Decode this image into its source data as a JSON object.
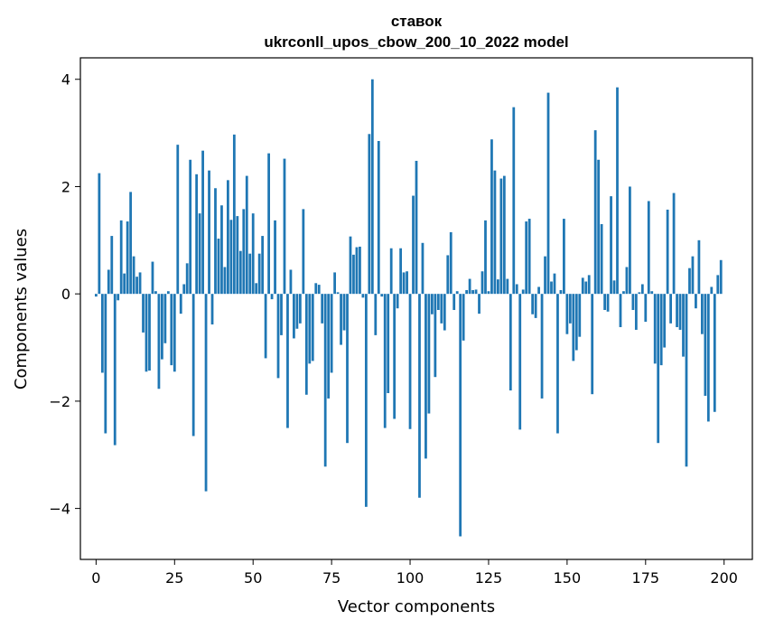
{
  "chart_data": {
    "type": "bar",
    "title_lines": [
      "ставок",
      "ukrconll_upos_cbow_200_10_2022 model"
    ],
    "xlabel": "Vector components",
    "ylabel": "Components values",
    "xlim": [
      -5,
      209
    ],
    "ylim": [
      -4.95,
      4.4
    ],
    "x_ticks": [
      0,
      25,
      50,
      75,
      100,
      125,
      150,
      175,
      200
    ],
    "y_ticks": [
      -4,
      -2,
      0,
      2,
      4
    ],
    "y_tick_labels": [
      "−4",
      "−2",
      "0",
      "2",
      "4"
    ],
    "grid": false,
    "bar_color": "#1f77b4",
    "values": [
      -0.05,
      2.25,
      -1.47,
      -2.6,
      0.45,
      1.08,
      -2.82,
      -0.12,
      1.37,
      0.38,
      1.35,
      1.9,
      0.7,
      0.32,
      0.4,
      -0.72,
      -1.45,
      -1.43,
      0.6,
      0.05,
      -1.77,
      -1.22,
      -0.92,
      0.05,
      -1.33,
      -1.45,
      2.78,
      -0.37,
      0.18,
      0.57,
      2.5,
      -2.65,
      2.23,
      1.5,
      2.67,
      -3.68,
      2.3,
      -0.57,
      1.97,
      1.03,
      1.65,
      0.5,
      2.12,
      1.38,
      2.97,
      1.45,
      0.8,
      1.58,
      2.2,
      0.75,
      1.5,
      0.2,
      0.75,
      1.08,
      -1.2,
      2.62,
      -0.1,
      1.37,
      -1.57,
      -0.77,
      2.52,
      -2.5,
      0.45,
      -0.83,
      -0.65,
      -0.55,
      1.58,
      -1.88,
      -1.3,
      -1.25,
      0.2,
      0.17,
      -0.55,
      -3.22,
      -1.95,
      -1.47,
      0.4,
      0.03,
      -0.95,
      -0.68,
      -2.78,
      1.07,
      0.73,
      0.87,
      0.88,
      -0.07,
      -3.97,
      2.98,
      4.0,
      -0.77,
      2.85,
      -0.05,
      -2.5,
      -1.85,
      0.85,
      -2.33,
      -0.27,
      0.85,
      0.4,
      0.42,
      -2.52,
      1.83,
      2.48,
      -3.8,
      0.95,
      -3.07,
      -2.23,
      -0.38,
      -1.55,
      -0.3,
      -0.55,
      -0.68,
      0.72,
      1.15,
      -0.3,
      0.05,
      -4.52,
      -0.87,
      0.07,
      0.28,
      0.07,
      0.08,
      -0.37,
      0.42,
      1.37,
      0.05,
      2.88,
      2.3,
      0.27,
      2.15,
      2.2,
      0.28,
      -1.8,
      3.48,
      0.18,
      -2.53,
      0.08,
      1.35,
      1.4,
      -0.38,
      -0.45,
      0.13,
      -1.95,
      0.7,
      3.75,
      0.23,
      0.38,
      -2.6,
      0.07,
      1.4,
      -0.75,
      -0.55,
      -1.25,
      -1.05,
      -0.8,
      0.3,
      0.23,
      0.35,
      -1.87,
      3.05,
      2.5,
      1.3,
      -0.3,
      -0.33,
      1.82,
      0.25,
      3.85,
      -0.62,
      0.05,
      0.5,
      2.0,
      -0.3,
      -0.67,
      0.03,
      0.18,
      -0.52,
      1.73,
      0.05,
      -1.3,
      -2.78,
      -1.33,
      -1.0,
      1.57,
      -0.55,
      1.88,
      -0.62,
      -0.67,
      -1.17,
      -3.22,
      0.48,
      0.7,
      -0.27,
      1.0,
      -0.75,
      -1.9,
      -2.38,
      0.13,
      -2.2,
      0.35,
      0.63
    ]
  }
}
